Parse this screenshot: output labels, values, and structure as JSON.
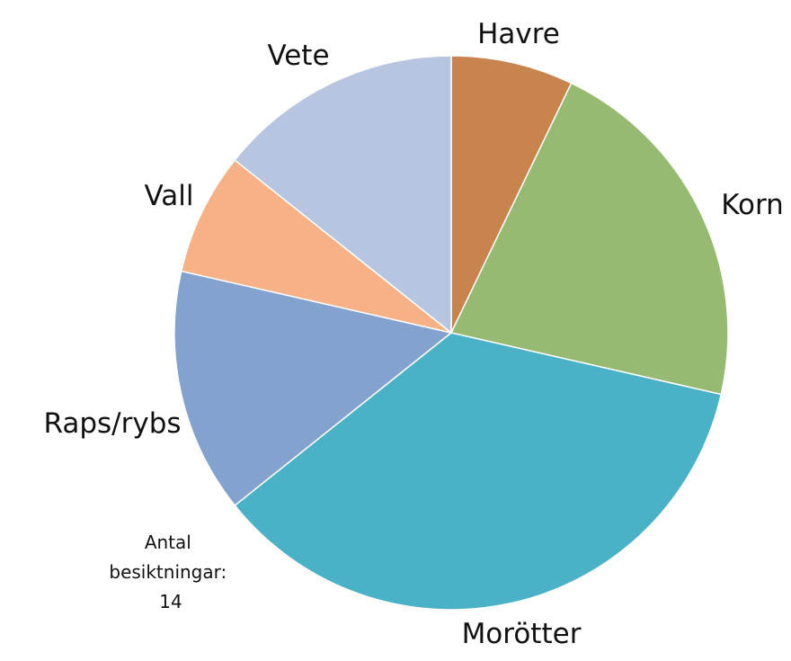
{
  "chart_data": {
    "type": "pie",
    "title": "",
    "start_angle_deg": 0,
    "direction": "clockwise",
    "slices": [
      {
        "label": "Havre",
        "value": 1,
        "color": "#C8844D"
      },
      {
        "label": "Korn",
        "value": 3,
        "color": "#97BA73"
      },
      {
        "label": "Morötter",
        "value": 5,
        "color": "#4BB1C7"
      },
      {
        "label": "Raps/rybs",
        "value": 2,
        "color": "#83A2CD"
      },
      {
        "label": "Vall",
        "value": 1,
        "color": "#F7B187"
      },
      {
        "label": "Vete",
        "value": 2,
        "color": "#B7C5E0"
      }
    ],
    "legend": "none",
    "annotation": {
      "lines": [
        "Antal",
        "besiktningar:",
        "14"
      ]
    }
  }
}
